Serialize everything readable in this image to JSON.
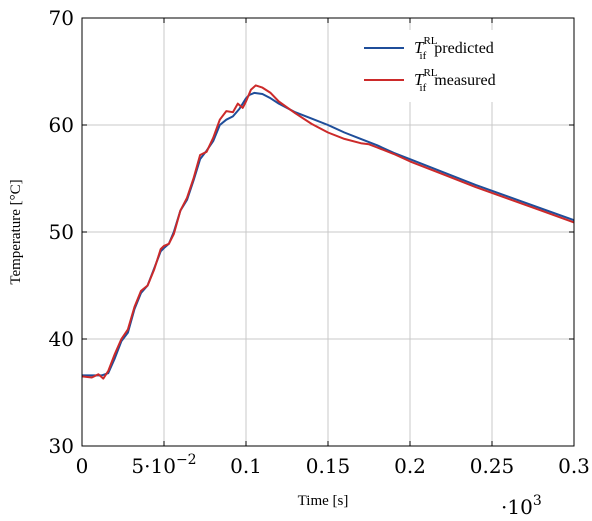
{
  "chart_data": {
    "type": "line",
    "xlabel": "Time [s]",
    "ylabel": "Temperature [°C]",
    "xlim": [
      0,
      0.3
    ],
    "ylim": [
      30,
      70
    ],
    "x_scale_label": "·10",
    "x_scale_exponent": "3",
    "x_tick_values": [
      0,
      0.05,
      0.1,
      0.15,
      0.2,
      0.25,
      0.3
    ],
    "x_tick_labels": [
      "0",
      "5·10",
      "0.1",
      "0.15",
      "0.2",
      "0.25",
      "0.3"
    ],
    "x_tick_label_exponent": "−2",
    "y_ticks": [
      30,
      40,
      50,
      60,
      70
    ],
    "grid": true,
    "legend_position": "top-right",
    "series": [
      {
        "symbol": "T",
        "subscript": "if",
        "superscript": "RL",
        "label": "predicted",
        "color": "#1f4e9a",
        "x": [
          0,
          0.012,
          0.016,
          0.02,
          0.024,
          0.028,
          0.032,
          0.036,
          0.04,
          0.044,
          0.048,
          0.05,
          0.053,
          0.056,
          0.06,
          0.064,
          0.068,
          0.072,
          0.076,
          0.08,
          0.084,
          0.088,
          0.092,
          0.096,
          0.1,
          0.102,
          0.105,
          0.11,
          0.115,
          0.12,
          0.13,
          0.14,
          0.15,
          0.16,
          0.17,
          0.18,
          0.19,
          0.2,
          0.22,
          0.24,
          0.26,
          0.28,
          0.3
        ],
        "y": [
          36.6,
          36.6,
          36.8,
          38.2,
          39.8,
          40.6,
          42.8,
          44.3,
          45.0,
          46.6,
          48.2,
          48.5,
          48.9,
          50.0,
          52.0,
          53.0,
          54.8,
          56.8,
          57.6,
          58.5,
          60.0,
          60.5,
          60.8,
          61.5,
          62.5,
          62.8,
          63.0,
          62.9,
          62.5,
          62.0,
          61.2,
          60.6,
          60.0,
          59.3,
          58.7,
          58.1,
          57.4,
          56.8,
          55.6,
          54.4,
          53.3,
          52.2,
          51.1
        ]
      },
      {
        "symbol": "T",
        "subscript": "if",
        "superscript": "RL",
        "label": "measured",
        "color": "#cc2a2a",
        "x": [
          0,
          0.006,
          0.01,
          0.013,
          0.016,
          0.02,
          0.024,
          0.028,
          0.032,
          0.036,
          0.04,
          0.044,
          0.048,
          0.05,
          0.053,
          0.056,
          0.06,
          0.064,
          0.068,
          0.072,
          0.076,
          0.08,
          0.084,
          0.088,
          0.092,
          0.095,
          0.098,
          0.1,
          0.103,
          0.106,
          0.11,
          0.115,
          0.12,
          0.13,
          0.14,
          0.15,
          0.16,
          0.17,
          0.175,
          0.18,
          0.19,
          0.2,
          0.22,
          0.24,
          0.26,
          0.28,
          0.3
        ],
        "y": [
          36.5,
          36.4,
          36.7,
          36.3,
          37.0,
          38.6,
          40.0,
          40.9,
          43.0,
          44.5,
          45.0,
          46.5,
          48.4,
          48.7,
          48.9,
          49.8,
          52.0,
          53.2,
          55.0,
          57.2,
          57.5,
          58.8,
          60.5,
          61.3,
          61.2,
          62.0,
          61.6,
          62.2,
          63.3,
          63.7,
          63.5,
          63.0,
          62.2,
          61.1,
          60.1,
          59.3,
          58.7,
          58.3,
          58.2,
          57.9,
          57.3,
          56.6,
          55.4,
          54.2,
          53.1,
          52.0,
          50.9
        ]
      }
    ]
  }
}
